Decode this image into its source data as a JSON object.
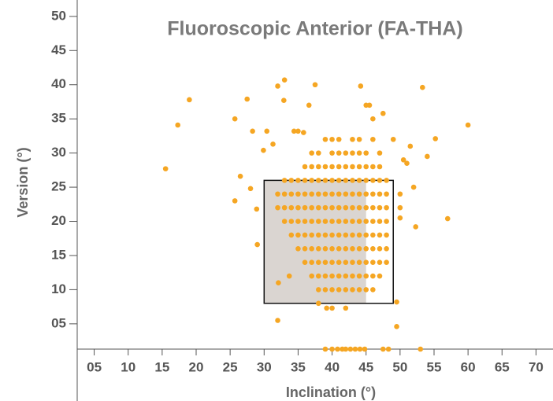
{
  "chart_data": {
    "type": "scatter",
    "title": "Fluoroscopic Anterior (FA-THA)",
    "x_label": "Inclination (°)",
    "y_label": "Version (°)",
    "color": "#f5a623",
    "xlim": [
      2.5,
      72.5
    ],
    "ylim": [
      1.3,
      52.4
    ],
    "xticks": [
      {
        "value": 5,
        "label": "05"
      },
      10,
      15,
      20,
      25,
      30,
      35,
      40,
      45,
      50,
      55,
      60,
      65,
      70
    ],
    "yticks": [
      {
        "value": 5,
        "label": "05"
      },
      10,
      15,
      20,
      25,
      30,
      35,
      40,
      45,
      50
    ],
    "regions": [
      {
        "xlim": [
          30,
          45
        ],
        "ylim": [
          8,
          26
        ],
        "color": "#dad5d1"
      },
      {
        "xlim": [
          30,
          49
        ],
        "ylim": [
          8,
          26
        ],
        "outline": "#111111"
      }
    ],
    "x": [
      36,
      37,
      38,
      39,
      40,
      41,
      42,
      43,
      44,
      45,
      46,
      47,
      33,
      34,
      35,
      36,
      37,
      38,
      39,
      40,
      41,
      42,
      43,
      44,
      45,
      46,
      47,
      48,
      32,
      33,
      34,
      35,
      36,
      37,
      38,
      39,
      40,
      41,
      42,
      43,
      44,
      45,
      46,
      47,
      48,
      50,
      32,
      33,
      34,
      35,
      36,
      37,
      38,
      39,
      40,
      41,
      42,
      43,
      44,
      45,
      46,
      47,
      48,
      33,
      34,
      35,
      36,
      37,
      38,
      39,
      40,
      41,
      42,
      43,
      44,
      45,
      46,
      47,
      48,
      34,
      35,
      36,
      37,
      38,
      39,
      40,
      41,
      42,
      43,
      44,
      45,
      46,
      47,
      48,
      35,
      36,
      37,
      38,
      39,
      40,
      41,
      42,
      43,
      44,
      45,
      46,
      47,
      48,
      36,
      37,
      38,
      39,
      40,
      41,
      42,
      43,
      44,
      45,
      46,
      47,
      48,
      37,
      38,
      39,
      40,
      41,
      42,
      43,
      44,
      45,
      46,
      47,
      38,
      39,
      40,
      41,
      42,
      43,
      44,
      45,
      46,
      37,
      38,
      40,
      41,
      42,
      43,
      44,
      45,
      47,
      39,
      40,
      41,
      43,
      44,
      46,
      15.5,
      17.3,
      19,
      25.7,
      25.7,
      26.5,
      27.5,
      28.3,
      28,
      28.9,
      29,
      29.9,
      30.4,
      31.3,
      32,
      33,
      32.9,
      32.1,
      32,
      33.7,
      34.4,
      35,
      35.8,
      36.6,
      37.5,
      38,
      39.2,
      40,
      42,
      44.2,
      45,
      45.5,
      46,
      47.5,
      49.5,
      49.5,
      49,
      50.5,
      51,
      52,
      51.5,
      52.3,
      53.3,
      54,
      55.2,
      57,
      60,
      50,
      50,
      39,
      40,
      40.8,
      41.5,
      42,
      42.7,
      43.4,
      44.1,
      44.8,
      47.5,
      48.3,
      53
    ],
    "values": [
      28,
      28,
      28,
      28,
      28,
      28,
      28,
      28,
      28,
      28,
      28,
      28,
      26,
      26,
      26,
      26,
      26,
      26,
      26,
      26,
      26,
      26,
      26,
      26,
      26,
      26,
      26,
      26,
      24,
      24,
      24,
      24,
      24,
      24,
      24,
      24,
      24,
      24,
      24,
      24,
      24,
      24,
      24,
      24,
      24,
      24,
      22,
      22,
      22,
      22,
      22,
      22,
      22,
      22,
      22,
      22,
      22,
      22,
      22,
      22,
      22,
      22,
      22,
      20,
      20,
      20,
      20,
      20,
      20,
      20,
      20,
      20,
      20,
      20,
      20,
      20,
      20,
      20,
      20,
      18,
      18,
      18,
      18,
      18,
      18,
      18,
      18,
      18,
      18,
      18,
      18,
      18,
      18,
      18,
      16,
      16,
      16,
      16,
      16,
      16,
      16,
      16,
      16,
      16,
      16,
      16,
      16,
      16,
      14,
      14,
      14,
      14,
      14,
      14,
      14,
      14,
      14,
      14,
      14,
      14,
      14,
      12,
      12,
      12,
      12,
      12,
      12,
      12,
      12,
      12,
      12,
      12,
      10,
      10,
      10,
      10,
      10,
      10,
      10,
      10,
      10,
      30,
      30,
      30,
      30,
      30,
      30,
      30,
      30,
      30,
      32,
      32,
      32,
      32,
      32,
      32,
      27.7,
      34.1,
      37.8,
      35,
      23,
      26.6,
      37.9,
      33.2,
      24.8,
      21.8,
      16.6,
      30.4,
      33.2,
      31.3,
      39.8,
      40.7,
      37.7,
      11,
      5.5,
      12,
      33.2,
      33.2,
      33,
      37,
      40,
      8,
      7.3,
      7.3,
      7.3,
      39.8,
      37,
      37,
      35,
      35.8,
      8.2,
      4.6,
      32,
      29,
      28.5,
      25,
      31,
      19.2,
      39.6,
      29.5,
      32.1,
      20.4,
      34.1,
      22,
      20.5,
      1.3,
      1.3,
      1.3,
      1.3,
      1.3,
      1.3,
      1.3,
      1.3,
      1.3,
      1.3,
      1.3,
      1.3
    ]
  }
}
